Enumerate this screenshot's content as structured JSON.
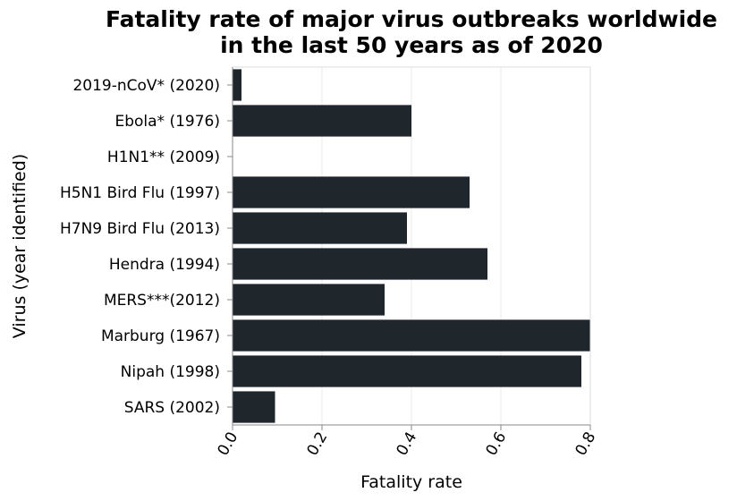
{
  "chart_data": {
    "type": "bar",
    "orientation": "horizontal",
    "title": "Fatality rate of major virus outbreaks worldwide in the last 50 years as of 2020",
    "title_lines": [
      "Fatality rate of major virus outbreaks worldwide",
      "in the last 50 years as of 2020"
    ],
    "xlabel": "Fatality rate",
    "ylabel": "Virus (year identified)",
    "xlim": [
      0,
      0.8
    ],
    "x_ticks": [
      "0.0",
      "0.2",
      "0.4",
      "0.6",
      "0.8"
    ],
    "grid": true,
    "categories": [
      "2019-nCoV* (2020)",
      "Ebola* (1976)",
      "H1N1** (2009)",
      "H5N1 Bird Flu (1997)",
      "H7N9 Bird Flu (2013)",
      "Hendra (1994)",
      "MERS***(2012)",
      "Marburg (1967)",
      "Nipah (1998)",
      "SARS (2002)"
    ],
    "values": [
      0.02,
      0.4,
      0.0002,
      0.53,
      0.39,
      0.57,
      0.34,
      0.8,
      0.78,
      0.095
    ],
    "bar_color": "#1f262c"
  }
}
